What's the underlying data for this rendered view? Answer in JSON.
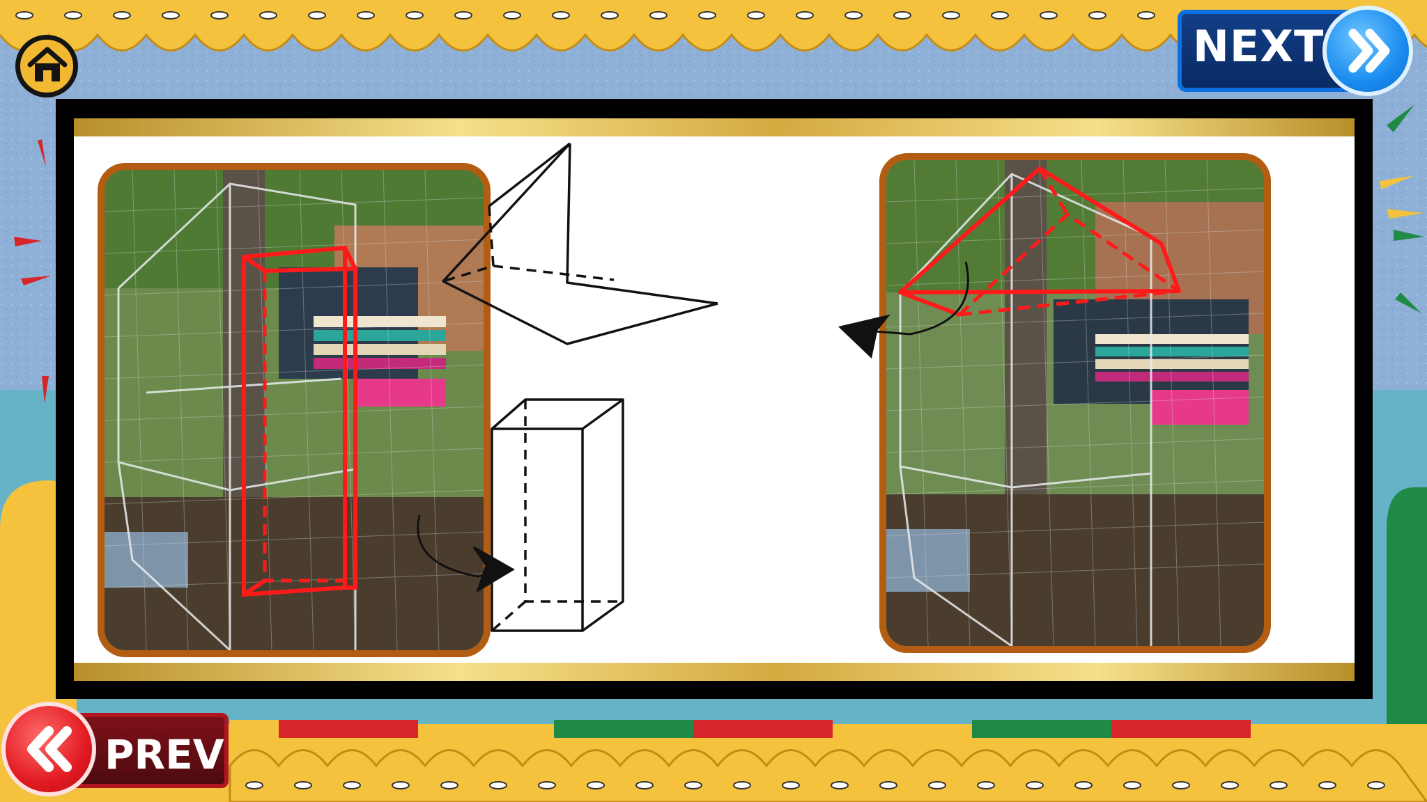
{
  "buttons": {
    "next_label": "NEXT",
    "prev_label": "PREV"
  },
  "colors": {
    "background_blue": "#8fb0d6",
    "scallop_yellow": "#f4c23c",
    "next_blue": "#0c6fe0",
    "prev_red": "#e21b22",
    "photo_frame": "#b25d12",
    "highlight_red": "#ff1a1a"
  },
  "icons": {
    "home": "home-icon",
    "next": "double-chevron-right-icon",
    "prev": "double-chevron-left-icon"
  },
  "content": {
    "left_photo": "cage-photo-prism-box",
    "right_photo": "cage-photo-roof-triangle",
    "shape_top": "triangular-prism",
    "shape_bottom": "rectangular-prism"
  }
}
